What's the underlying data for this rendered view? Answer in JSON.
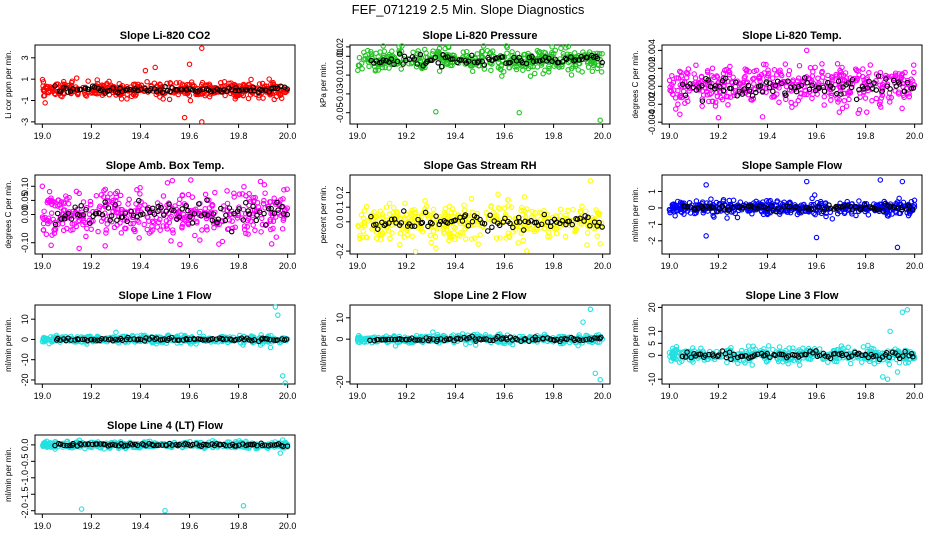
{
  "page_title": "FEF_071219  2.5 Min. Slope Diagnostics",
  "chart_data": [
    {
      "type": "scatter",
      "title": "Slope Li-820 CO2",
      "ylabel": "Li cor ppm per min.",
      "color": "#ff0000",
      "xlim": [
        18.97,
        20.03
      ],
      "ylim": [
        -3.2,
        4.2
      ],
      "x_ticks": [
        "19.0",
        "19.2",
        "19.4",
        "19.6",
        "19.8",
        "20.0"
      ],
      "y_ticks": [
        "-3",
        "-1",
        "1",
        "3"
      ],
      "y_tick_values": [
        -3,
        -1,
        1,
        3
      ],
      "noise_sd": 0.35,
      "mean": 0.0,
      "outliers": [
        [
          19.65,
          3.9
        ],
        [
          19.65,
          -3.0
        ],
        [
          19.58,
          -2.6
        ],
        [
          19.46,
          2.1
        ],
        [
          19.42,
          1.8
        ],
        [
          19.6,
          2.4
        ],
        [
          19.14,
          1.1
        ]
      ]
    },
    {
      "type": "scatter",
      "title": "Slope Li-820 Pressure",
      "ylabel": "kPa per min.",
      "color": "#22c322",
      "xlim": [
        18.97,
        20.03
      ],
      "ylim": [
        -0.062,
        0.022
      ],
      "x_ticks": [
        "19.0",
        "19.2",
        "19.4",
        "19.6",
        "19.8",
        "20.0"
      ],
      "y_ticks": [
        "-0.05",
        "-0.03",
        "-0.01",
        "0.01",
        "0.02"
      ],
      "y_tick_values": [
        -0.05,
        -0.03,
        -0.01,
        0.01,
        0.02
      ],
      "noise_sd": 0.006,
      "mean": 0.006,
      "outliers": [
        [
          19.32,
          -0.049
        ],
        [
          19.66,
          -0.05
        ],
        [
          19.99,
          -0.058
        ],
        [
          19.17,
          0.02
        ],
        [
          19.85,
          0.019
        ]
      ]
    },
    {
      "type": "scatter",
      "title": "Slope Li-820 Temp.",
      "ylabel": "degrees C per min.",
      "color": "#ff00ff",
      "xlim": [
        18.97,
        20.03
      ],
      "ylim": [
        -0.0042,
        0.0046
      ],
      "x_ticks": [
        "19.0",
        "19.2",
        "19.4",
        "19.6",
        "19.8",
        "20.0"
      ],
      "y_ticks": [
        "-0.004",
        "-0.002",
        "0.000",
        "0.002",
        "0.004"
      ],
      "y_tick_values": [
        -0.004,
        -0.002,
        0.0,
        0.002,
        0.004
      ],
      "noise_sd": 0.0011,
      "mean": 0.0,
      "outliers": [
        [
          19.56,
          0.004
        ],
        [
          19.2,
          -0.0035
        ],
        [
          19.38,
          -0.0034
        ],
        [
          19.77,
          -0.003
        ]
      ]
    },
    {
      "type": "scatter",
      "title": "Slope Amb. Box Temp.",
      "ylabel": "degrees C per min.",
      "color": "#ff00ff",
      "xlim": [
        18.97,
        20.03
      ],
      "ylim": [
        -0.14,
        0.14
      ],
      "x_ticks": [
        "19.0",
        "19.2",
        "19.4",
        "19.6",
        "19.8",
        "20.0"
      ],
      "y_ticks": [
        "-0.10",
        "0.00",
        "0.05",
        "0.10"
      ],
      "y_tick_values": [
        -0.1,
        0.0,
        0.05,
        0.1
      ],
      "noise_sd": 0.045,
      "mean": 0.0,
      "outliers": [
        [
          19.53,
          0.12
        ],
        [
          19.15,
          -0.12
        ],
        [
          19.0,
          0.1
        ]
      ]
    },
    {
      "type": "scatter",
      "title": "Slope Gas Stream RH",
      "ylabel": "percent per min.",
      "color": "#ffff00",
      "xlim": [
        18.97,
        20.03
      ],
      "ylim": [
        -0.22,
        0.32
      ],
      "x_ticks": [
        "19.0",
        "19.2",
        "19.4",
        "19.6",
        "19.8",
        "20.0"
      ],
      "y_ticks": [
        "-0.2",
        "0.0",
        "0.1",
        "0.2"
      ],
      "y_tick_values": [
        -0.2,
        0.0,
        0.1,
        0.2
      ],
      "noise_sd": 0.06,
      "mean": 0.0,
      "outliers": [
        [
          19.95,
          0.28
        ],
        [
          19.32,
          -0.18
        ],
        [
          19.99,
          -0.15
        ]
      ]
    },
    {
      "type": "scatter",
      "title": "Slope Sample Flow",
      "ylabel": "ml/min per min.",
      "color": "#0000ff",
      "xlim": [
        18.97,
        20.03
      ],
      "ylim": [
        -2.8,
        2.0
      ],
      "x_ticks": [
        "19.0",
        "19.2",
        "19.4",
        "19.6",
        "19.8",
        "20.0"
      ],
      "y_ticks": [
        "-2",
        "-1",
        "0",
        "1"
      ],
      "y_tick_values": [
        -2,
        -1,
        0,
        1
      ],
      "noise_sd": 0.22,
      "mean": 0.0,
      "outliers": [
        [
          19.15,
          1.4
        ],
        [
          19.15,
          -1.7
        ],
        [
          19.56,
          1.6
        ],
        [
          19.6,
          -1.8
        ],
        [
          19.86,
          1.7
        ],
        [
          19.95,
          1.6
        ],
        [
          19.93,
          -2.4
        ]
      ]
    },
    {
      "type": "scatter",
      "title": "Slope Line 1 Flow",
      "ylabel": "ml/min per min.",
      "color": "#22e0e0",
      "xlim": [
        18.97,
        20.03
      ],
      "ylim": [
        -22,
        17
      ],
      "x_ticks": [
        "19.0",
        "19.2",
        "19.4",
        "19.6",
        "19.8",
        "20.0"
      ],
      "y_ticks": [
        "-20",
        "-10",
        "0",
        "10"
      ],
      "y_tick_values": [
        -20,
        -10,
        0,
        10
      ],
      "noise_sd": 0.9,
      "mean": 0.0,
      "outliers": [
        [
          19.95,
          16
        ],
        [
          19.96,
          12
        ],
        [
          19.98,
          -18
        ],
        [
          19.99,
          -22
        ],
        [
          19.93,
          -4
        ],
        [
          19.3,
          3.5
        ]
      ]
    },
    {
      "type": "scatter",
      "title": "Slope Line 2 Flow",
      "ylabel": "ml/min per min.",
      "color": "#22e0e0",
      "xlim": [
        18.97,
        20.03
      ],
      "ylim": [
        -21,
        16
      ],
      "x_ticks": [
        "19.0",
        "19.2",
        "19.4",
        "19.6",
        "19.8",
        "20.0"
      ],
      "y_ticks": [
        "-20",
        "0",
        "10"
      ],
      "y_tick_values": [
        -20,
        0,
        10
      ],
      "noise_sd": 1.0,
      "mean": 0.0,
      "outliers": [
        [
          19.95,
          14
        ],
        [
          19.92,
          8
        ],
        [
          19.97,
          -16
        ],
        [
          19.99,
          -19
        ],
        [
          19.9,
          -3
        ]
      ]
    },
    {
      "type": "scatter",
      "title": "Slope Line 3 Flow",
      "ylabel": "ml/min per min.",
      "color": "#22e0e0",
      "xlim": [
        18.97,
        20.03
      ],
      "ylim": [
        -12,
        21
      ],
      "x_ticks": [
        "19.0",
        "19.2",
        "19.4",
        "19.6",
        "19.8",
        "20.0"
      ],
      "y_ticks": [
        "-10",
        "0",
        "5",
        "10",
        "20"
      ],
      "y_tick_values": [
        -10,
        0,
        5,
        10,
        20
      ],
      "noise_sd": 1.5,
      "mean": 0.0,
      "outliers": [
        [
          19.97,
          19
        ],
        [
          19.95,
          18
        ],
        [
          19.9,
          10
        ],
        [
          19.87,
          -9
        ],
        [
          19.93,
          -7
        ],
        [
          19.89,
          -10
        ]
      ]
    },
    {
      "type": "scatter",
      "title": "Slope Line 4 (LT) Flow",
      "ylabel": "ml/min per min.",
      "color": "#22e0e0",
      "xlim": [
        18.97,
        20.03
      ],
      "ylim": [
        -2.1,
        0.3
      ],
      "x_ticks": [
        "19.0",
        "19.2",
        "19.4",
        "19.6",
        "19.8",
        "20.0"
      ],
      "y_ticks": [
        "-2.0",
        "-1.5",
        "-1.0",
        "-0.5",
        "0.0"
      ],
      "y_tick_values": [
        -2.0,
        -1.5,
        -1.0,
        -0.5,
        0.0
      ],
      "noise_sd": 0.05,
      "mean": 0.0,
      "outliers": [
        [
          19.16,
          -1.95
        ],
        [
          19.5,
          -2.0
        ],
        [
          19.82,
          -1.85
        ],
        [
          19.97,
          -0.25
        ],
        [
          19.98,
          0.15
        ]
      ]
    }
  ]
}
